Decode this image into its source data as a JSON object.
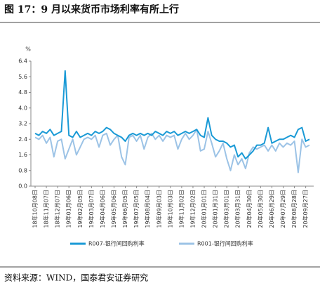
{
  "chart_data": {
    "type": "line",
    "title": "图 17：9 月以来货币市场利率有所上行",
    "y_unit": "%",
    "source": "资料来源：WIND，国泰君安证券研究",
    "categories": [
      "18年10月08日",
      null,
      null,
      "18年11月07日",
      null,
      null,
      "18年12月07日",
      null,
      null,
      "19年01月06日",
      null,
      null,
      "19年02月05日",
      null,
      null,
      "19年03月07日",
      null,
      null,
      "19年04月06日",
      null,
      null,
      "19年05月06日",
      null,
      null,
      "19年06月05日",
      null,
      null,
      "19年07月05日",
      null,
      null,
      "19年08月04日",
      null,
      null,
      "19年09月03日",
      null,
      null,
      "19年10月03日",
      null,
      null,
      "19年11月02日",
      null,
      null,
      "19年12月02日",
      null,
      null,
      "20年01月01日",
      null,
      null,
      "20年01月31日",
      null,
      null,
      "20年03月01日",
      null,
      null,
      "20年03月31日",
      null,
      null,
      "20年04月30日",
      null,
      null,
      "20年05月30日",
      null,
      null,
      "20年06月29日",
      null,
      null,
      "20年07月29日",
      null,
      null,
      "20年08月28日",
      null,
      null,
      "20年09月27日",
      null
    ],
    "series": [
      {
        "name": "R007-银行间回购利率",
        "color": "#1a9ad6",
        "values": [
          2.7,
          2.6,
          2.8,
          2.7,
          2.9,
          2.6,
          2.7,
          2.8,
          5.9,
          2.6,
          2.5,
          2.8,
          2.5,
          2.6,
          2.7,
          2.6,
          2.8,
          2.7,
          2.8,
          3.0,
          2.9,
          2.7,
          2.6,
          2.5,
          2.3,
          2.6,
          2.7,
          2.6,
          2.7,
          2.6,
          2.7,
          2.6,
          2.8,
          2.7,
          2.6,
          2.8,
          2.7,
          2.8,
          2.6,
          2.7,
          2.8,
          2.7,
          2.8,
          2.9,
          2.6,
          2.5,
          3.5,
          2.6,
          2.4,
          2.3,
          2.3,
          2.2,
          2.0,
          2.1,
          1.5,
          1.7,
          1.4,
          1.6,
          1.8,
          2.1,
          2.1,
          2.2,
          3.0,
          2.2,
          2.3,
          2.4,
          2.4,
          2.5,
          2.6,
          2.5,
          2.9,
          3.0,
          2.3,
          2.4
        ]
      },
      {
        "name": "R001-银行间回购利率",
        "color": "#9cc3e6",
        "values": [
          2.5,
          2.4,
          2.6,
          2.2,
          2.5,
          1.5,
          2.3,
          2.4,
          1.4,
          1.9,
          2.4,
          1.6,
          2.0,
          2.4,
          2.5,
          2.4,
          2.6,
          2.0,
          2.6,
          2.7,
          2.1,
          2.4,
          2.6,
          1.5,
          1.1,
          2.5,
          2.6,
          2.3,
          2.6,
          1.9,
          2.5,
          2.7,
          2.4,
          2.6,
          2.3,
          2.6,
          2.5,
          2.6,
          1.9,
          2.4,
          2.7,
          2.4,
          2.6,
          2.9,
          1.8,
          1.9,
          2.8,
          2.2,
          1.5,
          1.8,
          2.2,
          1.4,
          0.8,
          1.6,
          1.1,
          1.4,
          0.9,
          1.7,
          2.0,
          1.9,
          2.0,
          2.1,
          1.8,
          2.1,
          1.8,
          2.2,
          2.0,
          2.2,
          2.1,
          2.3,
          0.7,
          2.4,
          2.0,
          2.1
        ]
      }
    ],
    "ylim": [
      0,
      6.4
    ],
    "yticks": [
      {
        "value": 0,
        "label": "0.0"
      },
      0.8,
      1.6,
      2.4,
      3.2,
      {
        "value": 4,
        "label": "4.0"
      },
      4.8,
      5.6,
      6.4
    ]
  }
}
